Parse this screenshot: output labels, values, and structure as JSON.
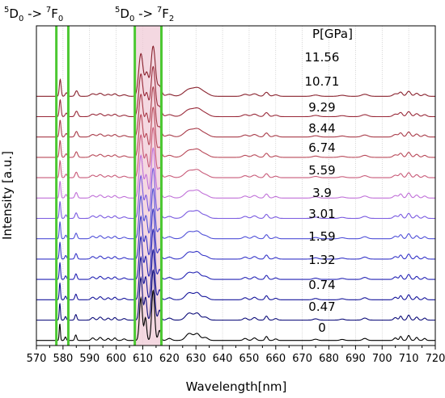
{
  "chart_data": {
    "type": "line",
    "xlabel": "Wavelength[nm]",
    "ylabel": "Intensity [a.u.]",
    "xlim": [
      570,
      720
    ],
    "xticks": [
      570,
      580,
      590,
      600,
      610,
      620,
      630,
      640,
      650,
      660,
      670,
      680,
      690,
      700,
      710,
      720
    ],
    "grid": "vertical",
    "legend_title": "P[GPa]",
    "series": [
      {
        "name": "0",
        "color": "#000000"
      },
      {
        "name": "0.47",
        "color": "#0b0b78"
      },
      {
        "name": "0.74",
        "color": "#14149a"
      },
      {
        "name": "1.32",
        "color": "#2323b4"
      },
      {
        "name": "1.59",
        "color": "#3636c8"
      },
      {
        "name": "3.01",
        "color": "#5050d8"
      },
      {
        "name": "3.9",
        "color": "#7a5ae0"
      },
      {
        "name": "5.59",
        "color": "#c070d8"
      },
      {
        "name": "6.74",
        "color": "#c85a78"
      },
      {
        "name": "8.44",
        "color": "#b84858"
      },
      {
        "name": "9.29",
        "color": "#a83a48"
      },
      {
        "name": "10.71",
        "color": "#982838"
      },
      {
        "name": "11.56",
        "color": "#88202c"
      }
    ],
    "annotations": {
      "band1": {
        "pre": "5",
        "main1": "D",
        "sub1": "0",
        "arrow": " -> ",
        "pre2": "7",
        "main2": "F",
        "sub2": "0"
      },
      "band2": {
        "pre": "5",
        "main1": "D",
        "sub1": "0",
        "arrow": " -> ",
        "pre2": "7",
        "main2": "F",
        "sub2": "2"
      }
    },
    "highlight_bands": [
      [
        577.5,
        582
      ],
      [
        607,
        617
      ]
    ],
    "band_color": "#4cc832",
    "highlight_fill": "#f0c8d4"
  }
}
